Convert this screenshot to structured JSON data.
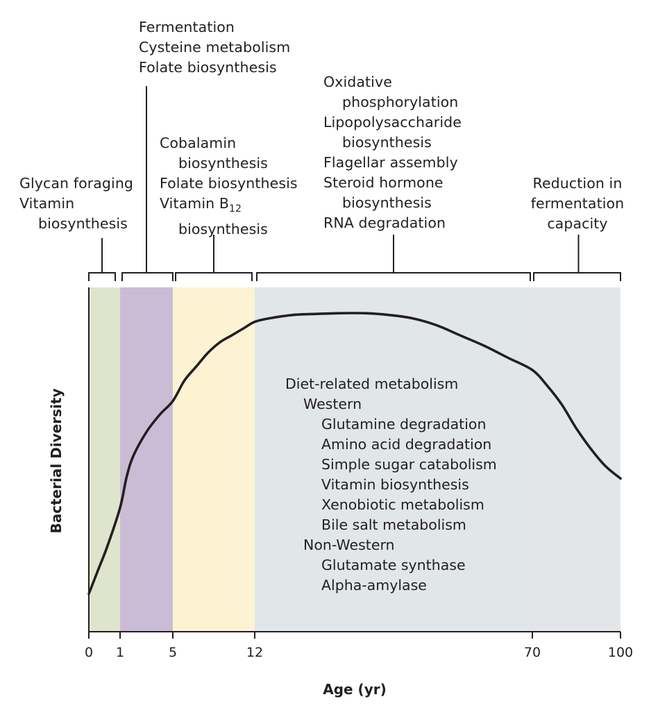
{
  "chart_data": {
    "type": "line",
    "xlabel": "Age (yr)",
    "ylabel": "Bacterial Diversity",
    "x_ticks": [
      "0",
      "1",
      "5",
      "12",
      "70",
      "100"
    ],
    "series": [
      {
        "x": [
          0,
          0.3,
          0.6,
          1,
          1.5,
          2,
          3,
          4,
          5,
          6,
          7,
          8,
          9,
          10,
          11,
          12,
          15,
          20,
          25,
          30,
          35,
          40,
          45,
          50,
          55,
          60,
          65,
          70,
          75,
          80,
          85,
          90,
          95,
          100
        ],
        "y": [
          0.11,
          0.18,
          0.25,
          0.36,
          0.45,
          0.51,
          0.58,
          0.63,
          0.67,
          0.73,
          0.77,
          0.81,
          0.84,
          0.86,
          0.88,
          0.9,
          0.91,
          0.92,
          0.923,
          0.925,
          0.925,
          0.92,
          0.91,
          0.89,
          0.86,
          0.83,
          0.795,
          0.76,
          0.715,
          0.66,
          0.59,
          0.53,
          0.48,
          0.445
        ]
      }
    ],
    "stages": [
      {
        "from": 0,
        "to": 1,
        "color": "#dfe5cc",
        "labels": [
          {
            "text": "Glycan foraging",
            "indent": false
          },
          {
            "text": "Vitamin",
            "indent": false
          },
          {
            "text": "biosynthesis",
            "indent": true
          }
        ]
      },
      {
        "from": 1,
        "to": 5,
        "color": "#cbbcd5",
        "labels": [
          {
            "text": "Fermentation",
            "indent": false
          },
          {
            "text": "Cysteine metabolism",
            "indent": false
          },
          {
            "text": "Folate biosynthesis",
            "indent": false
          }
        ]
      },
      {
        "from": 5,
        "to": 12,
        "color": "#fdf3d2",
        "labels": [
          {
            "text": "Cobalamin",
            "indent": false
          },
          {
            "text": "biosynthesis",
            "indent": true
          },
          {
            "text": "Folate biosynthesis",
            "indent": false
          },
          {
            "text": "Vitamin B",
            "sub": "12",
            "indent": false
          },
          {
            "text": "biosynthesis",
            "indent": true
          }
        ]
      },
      {
        "from": 12,
        "to": 70,
        "color": "#e1e6e8",
        "labels": [
          {
            "text": "Oxidative",
            "indent": false
          },
          {
            "text": "phosphorylation",
            "indent": true
          },
          {
            "text": "Lipopolysaccharide",
            "indent": false
          },
          {
            "text": "biosynthesis",
            "indent": true
          },
          {
            "text": "Flagellar assembly",
            "indent": false
          },
          {
            "text": "Steroid hormone",
            "indent": false
          },
          {
            "text": "biosynthesis",
            "indent": true
          },
          {
            "text": "RNA degradation",
            "indent": false
          }
        ]
      },
      {
        "from": 70,
        "to": 100,
        "color": "#e3e6e8",
        "labels": [
          {
            "text": "Reduction in",
            "indent": false
          },
          {
            "text": "fermentation",
            "indent": false
          },
          {
            "text": "capacity",
            "indent": false
          }
        ]
      }
    ],
    "annotation": {
      "lines": [
        {
          "text": "Diet-related metabolism",
          "level": 0
        },
        {
          "text": "Western",
          "level": 1
        },
        {
          "text": "Glutamine degradation",
          "level": 2
        },
        {
          "text": "Amino acid degradation",
          "level": 2
        },
        {
          "text": "Simple sugar catabolism",
          "level": 2
        },
        {
          "text": "Vitamin biosynthesis",
          "level": 2
        },
        {
          "text": "Xenobiotic metabolism",
          "level": 2
        },
        {
          "text": "Bile salt metabolism",
          "level": 2
        },
        {
          "text": "Non-Western",
          "level": 1
        },
        {
          "text": "Glutamate synthase",
          "level": 2
        },
        {
          "text": "Alpha-amylase",
          "level": 2
        }
      ]
    },
    "colors": {
      "line": "#231f20",
      "axis": "#231f20"
    }
  }
}
